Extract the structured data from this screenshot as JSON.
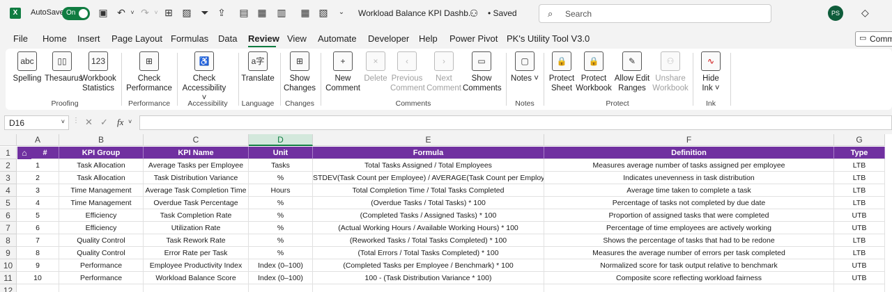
{
  "titlebar": {
    "logo": "X",
    "autosave_label": "AutoSave",
    "autosave_state": "On",
    "doc_title": "Workload Balance KPI Dashb...",
    "saved_label": "• Saved",
    "search_placeholder": "Search",
    "avatar_initials": "PS",
    "icons": [
      "save-icon",
      "undo-icon",
      "redo-icon",
      "borders-icon",
      "picture-icon",
      "filter-icon",
      "share-icon",
      "form-icon",
      "calculator-icon",
      "table-icon",
      "form2-icon",
      "dropdown-icon",
      "search-icon",
      "diamond-icon"
    ]
  },
  "menu": {
    "items": [
      "File",
      "Home",
      "Insert",
      "Page Layout",
      "Formulas",
      "Data",
      "Review",
      "View",
      "Automate",
      "Developer",
      "Help",
      "Power Pivot",
      "PK's Utility Tool V3.0"
    ],
    "active": "Review",
    "comments_button": "Comm"
  },
  "ribbon": {
    "groups": [
      {
        "title": "Proofing",
        "buttons": [
          {
            "label": "Spelling",
            "icon": "abc"
          },
          {
            "label": "Thesaurus",
            "icon": "book"
          },
          {
            "label": "Workbook Statistics",
            "icon": "123"
          }
        ]
      },
      {
        "title": "Performance",
        "buttons": [
          {
            "label": "Check Performance",
            "icon": "grid"
          }
        ]
      },
      {
        "title": "Accessibility",
        "buttons": [
          {
            "label": "Check Accessibility ˅",
            "icon": "access"
          }
        ]
      },
      {
        "title": "Language",
        "buttons": [
          {
            "label": "Translate",
            "icon": "a字"
          }
        ]
      },
      {
        "title": "Changes",
        "buttons": [
          {
            "label": "Show Changes",
            "icon": "grid"
          }
        ]
      },
      {
        "title": "Comments",
        "buttons": [
          {
            "label": "New Comment",
            "icon": "+",
            "disabled": false
          },
          {
            "label": "Delete",
            "icon": "x",
            "disabled": true
          },
          {
            "label": "Previous Comment",
            "icon": "<",
            "disabled": true
          },
          {
            "label": "Next Comment",
            "icon": ">",
            "disabled": true
          },
          {
            "label": "Show Comments",
            "icon": "□",
            "disabled": false
          }
        ]
      },
      {
        "title": "Notes",
        "buttons": [
          {
            "label": "Notes ˅",
            "icon": "note"
          }
        ]
      },
      {
        "title": "Protect",
        "buttons": [
          {
            "label": "Protect Sheet",
            "icon": "lock",
            "disabled": false
          },
          {
            "label": "Protect Workbook",
            "icon": "lock",
            "disabled": false
          },
          {
            "label": "Allow Edit Ranges",
            "icon": "edit",
            "disabled": false
          },
          {
            "label": "Unshare Workbook",
            "icon": "user",
            "disabled": true
          }
        ]
      },
      {
        "title": "Ink",
        "buttons": [
          {
            "label": "Hide Ink ˅",
            "icon": "ink"
          }
        ]
      }
    ]
  },
  "formula_bar": {
    "name_box": "D16",
    "fx": "fx",
    "content": ""
  },
  "sheet": {
    "columns": [
      "A",
      "B",
      "C",
      "D",
      "E",
      "F",
      "G"
    ],
    "selected_column": "D",
    "row_numbers": [
      "1",
      "2",
      "3",
      "4",
      "5",
      "6",
      "7",
      "8",
      "9",
      "10",
      "11",
      "12"
    ],
    "headers": [
      "#",
      "KPI Group",
      "KPI Name",
      "Unit",
      "Formula",
      "Definition",
      "Type"
    ],
    "rows": [
      [
        "1",
        "Task Allocation",
        "Average Tasks per Employee",
        "Tasks",
        "Total Tasks Assigned / Total Employees",
        "Measures average number of tasks assigned per employee",
        "LTB"
      ],
      [
        "2",
        "Task Allocation",
        "Task Distribution Variance",
        "%",
        "STDEV(Task Count per Employee) / AVERAGE(Task Count per Employee)",
        "Indicates unevenness in task distribution",
        "LTB"
      ],
      [
        "3",
        "Time Management",
        "Average Task Completion Time",
        "Hours",
        "Total Completion Time / Total Tasks Completed",
        "Average time taken to complete a task",
        "LTB"
      ],
      [
        "4",
        "Time Management",
        "Overdue Task Percentage",
        "%",
        "(Overdue Tasks / Total Tasks) * 100",
        "Percentage of tasks not completed by due date",
        "LTB"
      ],
      [
        "5",
        "Efficiency",
        "Task Completion Rate",
        "%",
        "(Completed Tasks / Assigned Tasks) * 100",
        "Proportion of assigned tasks that were completed",
        "UTB"
      ],
      [
        "6",
        "Efficiency",
        "Utilization Rate",
        "%",
        "(Actual Working Hours / Available Working Hours) * 100",
        "Percentage of time employees are actively working",
        "UTB"
      ],
      [
        "7",
        "Quality Control",
        "Task Rework Rate",
        "%",
        "(Reworked Tasks / Total Tasks Completed) * 100",
        "Shows the percentage of tasks that had to be redone",
        "LTB"
      ],
      [
        "8",
        "Quality Control",
        "Error Rate per Task",
        "%",
        "(Total Errors / Total Tasks Completed) * 100",
        "Measures the average number of errors per task completed",
        "LTB"
      ],
      [
        "9",
        "Performance",
        "Employee Productivity Index",
        "Index (0–100)",
        "(Completed Tasks per Employee / Benchmark) * 100",
        "Normalized score for task output relative to benchmark",
        "UTB"
      ],
      [
        "10",
        "Performance",
        "Workload Balance Score",
        "Index (0–100)",
        "100 - (Task Distribution Variance * 100)",
        "Composite score reflecting workload fairness",
        "UTB"
      ]
    ]
  },
  "colors": {
    "header_purple": "#7030a0",
    "excel_green": "#107c41"
  }
}
